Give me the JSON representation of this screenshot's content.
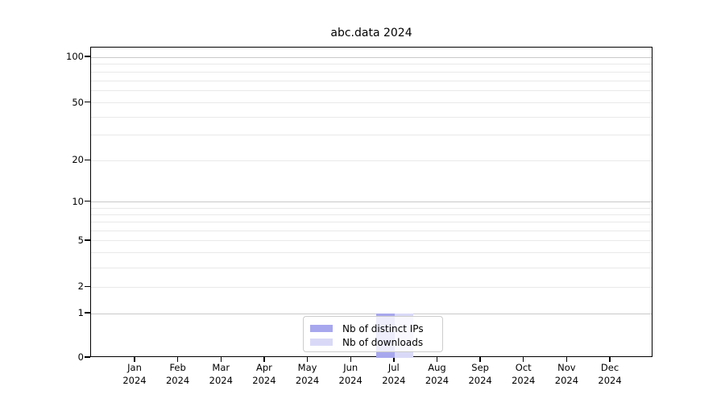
{
  "title": "abc.data 2024",
  "chart_data": {
    "type": "bar",
    "title": "abc.data 2024",
    "year_label": "2024",
    "categories": [
      "Jan",
      "Feb",
      "Mar",
      "Apr",
      "May",
      "Jun",
      "Jul",
      "Aug",
      "Sep",
      "Oct",
      "Nov",
      "Dec"
    ],
    "series": [
      {
        "name": "Nb of distinct IPs",
        "color": "#a7a7ee",
        "values": [
          0,
          0,
          0,
          0,
          0,
          0,
          1,
          0,
          0,
          0,
          0,
          0
        ]
      },
      {
        "name": "Nb of downloads",
        "color": "#d9d9f7",
        "values": [
          0,
          0,
          0,
          0,
          0,
          0,
          1,
          0,
          0,
          0,
          0,
          0
        ]
      }
    ],
    "y_ticks": [
      0,
      1,
      2,
      5,
      10,
      20,
      50,
      100
    ],
    "y_minor_gridlines": [
      3,
      4,
      6,
      7,
      8,
      9,
      30,
      40,
      60,
      70,
      80,
      90
    ],
    "ylim": [
      0,
      100
    ],
    "scale": "log-like above 1, linear 0-1",
    "grid": "horizontal",
    "legend_position": "bottom-center",
    "colors": {
      "major_decade_gridline": "#c9c9c9",
      "minor_gridline": "#e9e9e9",
      "axis": "#000000"
    }
  }
}
